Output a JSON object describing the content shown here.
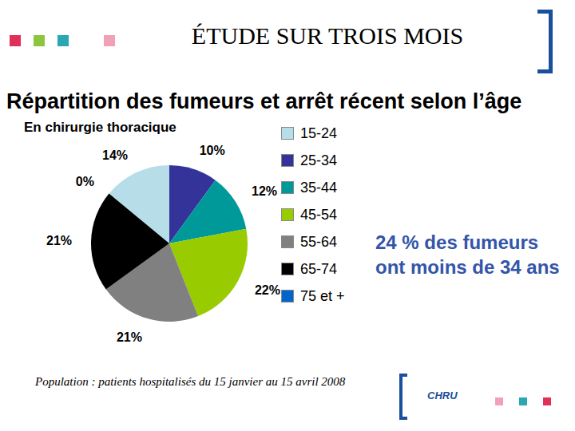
{
  "chart_data": {
    "type": "pie",
    "title": "ÉTUDE SUR TROIS MOIS",
    "subtitle": "Répartition des fumeurs et arrêt récent selon l’âge",
    "chart_label": "En chirurgie thoracique",
    "annotation": "24 % des fumeurs ont moins de 34 ans",
    "note": "Population : patients hospitalisés du 15 janvier au 15 avril 2008",
    "logo": "CHRU",
    "categories": [
      "15-24",
      "25-34",
      "35-44",
      "45-54",
      "55-64",
      "65-74",
      "75 et +"
    ],
    "values": [
      14,
      10,
      12,
      22,
      21,
      21,
      0
    ],
    "value_labels": [
      "14%",
      "10%",
      "12%",
      "22%",
      "21%",
      "21%",
      "0%"
    ],
    "colors": [
      "#b7dde8",
      "#333399",
      "#009999",
      "#99cc00",
      "#808080",
      "#000000",
      "#0066cc"
    ],
    "data_labels": true,
    "legend": "right"
  }
}
